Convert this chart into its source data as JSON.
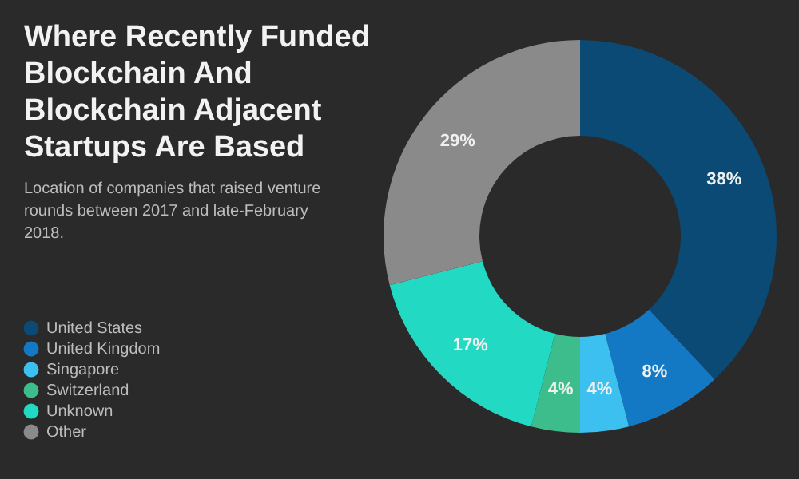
{
  "chart_data": {
    "type": "donut",
    "title": "Where Recently Funded Blockchain And Blockchain Adjacent Startups Are Based",
    "subtitle": "Location of companies that raised venture rounds between 2017 and late-February 2018.",
    "categories": [
      "United States",
      "United Kingdom",
      "Singapore",
      "Switzerland",
      "Unknown",
      "Other"
    ],
    "values": [
      38,
      8,
      4,
      4,
      17,
      29
    ],
    "colors": [
      "#0b4a75",
      "#1479c4",
      "#3cc0f0",
      "#3dbd8c",
      "#22d9c4",
      "#8a8a8a"
    ],
    "value_labels": [
      "38%",
      "8%",
      "4%",
      "4%",
      "17%",
      "29%"
    ],
    "legend": "left"
  }
}
